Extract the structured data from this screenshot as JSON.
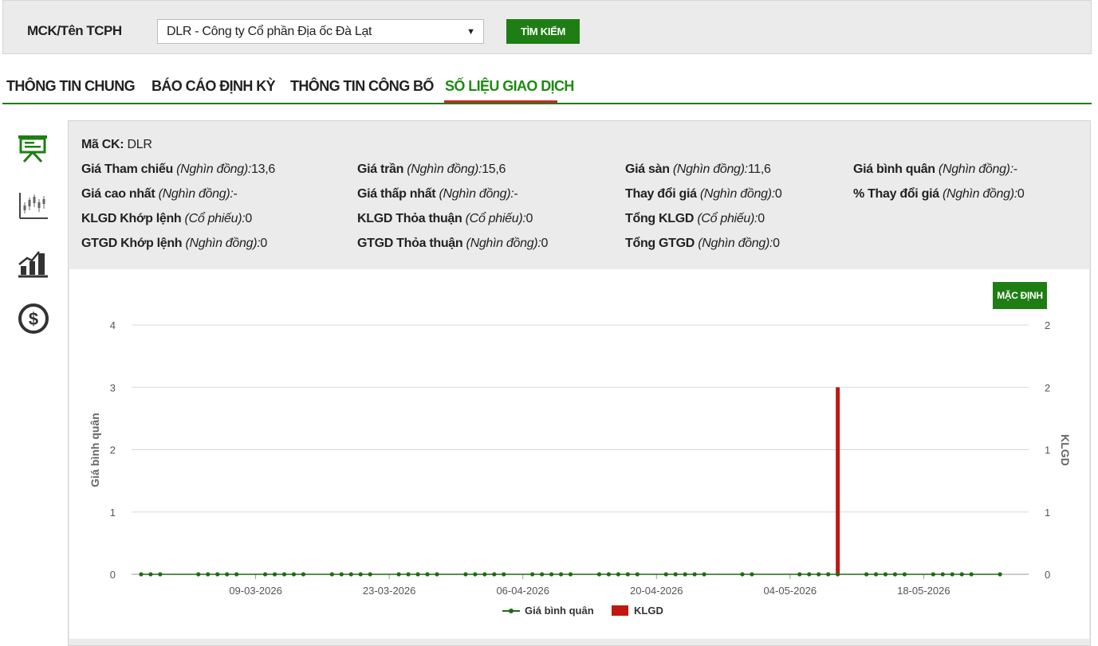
{
  "search": {
    "label": "MCK/Tên TCPH",
    "selected": "DLR - Công ty Cổ phần Địa ốc Đà Lạt",
    "button": "TÌM KIẾM"
  },
  "tabs": [
    {
      "label": "THÔNG TIN CHUNG",
      "active": false
    },
    {
      "label": "BÁO CÁO ĐỊNH KỲ",
      "active": false
    },
    {
      "label": "THÔNG TIN CÔNG BỐ",
      "active": false
    },
    {
      "label": "SỐ LIỆU GIAO DỊCH",
      "active": true
    }
  ],
  "sidebar_icons": [
    "presentation-icon",
    "candlestick-chart-icon",
    "growth-chart-icon",
    "dollar-icon"
  ],
  "info": {
    "ma_ck": {
      "label": "Mã CK:",
      "value": "DLR"
    },
    "rows": [
      [
        {
          "label": "Giá Tham chiếu",
          "unit": "(Nghìn đồng):",
          "value": "13,6"
        },
        {
          "label": "Giá trần",
          "unit": "(Nghìn đồng):",
          "value": "15,6"
        },
        {
          "label": "Giá sàn",
          "unit": "(Nghìn đồng):",
          "value": "11,6"
        },
        {
          "label": "Giá bình quân",
          "unit": "(Nghìn đồng):",
          "value": "-"
        }
      ],
      [
        {
          "label": "Giá cao nhất",
          "unit": "(Nghìn đồng):",
          "value": "-"
        },
        {
          "label": "Giá thấp nhất",
          "unit": "(Nghìn đồng):",
          "value": "-"
        },
        {
          "label": "Thay đổi giá",
          "unit": "(Nghìn đồng):",
          "value": "0"
        },
        {
          "label": "% Thay đổi giá",
          "unit": "(Nghìn đồng):",
          "value": "0"
        }
      ],
      [
        {
          "label": "KLGD Khớp lệnh",
          "unit": "(Cổ phiếu):",
          "value": "0"
        },
        {
          "label": "KLGD Thỏa thuận",
          "unit": "(Cổ phiếu):",
          "value": "0"
        },
        {
          "label": "Tổng KLGD",
          "unit": "(Cổ phiếu):",
          "value": "0"
        }
      ],
      [
        {
          "label": "GTGD Khớp lệnh",
          "unit": "(Nghìn đồng):",
          "value": "0"
        },
        {
          "label": "GTGD Thỏa thuận",
          "unit": "(Nghìn đồng):",
          "value": "0"
        },
        {
          "label": "Tổng GTGD",
          "unit": "(Nghìn đồng):",
          "value": "0"
        }
      ]
    ]
  },
  "chart_controls": {
    "default_button": "MẶC ĐỊNH"
  },
  "colors": {
    "accent": "#1e7e14",
    "line": "#1e6b14",
    "bar": "#c0180f",
    "tab_active": "#1e8a14",
    "underline": "#c62828"
  },
  "chart_data": {
    "type": "line",
    "ylabel": "Giá bình quân",
    "y2label": "KLGD",
    "ylim": [
      0,
      4
    ],
    "y2lim": [
      0,
      2
    ],
    "yticks": [
      "0",
      "1",
      "2",
      "3",
      "4"
    ],
    "y2ticks": [
      "0",
      "1",
      "1",
      "2",
      "2"
    ],
    "xrange": [
      "2026-02-24",
      "2026-05-29"
    ],
    "xticks": [
      "09-03-2026",
      "23-03-2026",
      "06-04-2026",
      "20-04-2026",
      "04-05-2026",
      "18-05-2026"
    ],
    "legend": [
      "Giá bình quân",
      "KLGD"
    ],
    "legend_position": "bottom",
    "grid": true,
    "series": [
      {
        "name": "Giá bình quân",
        "kind": "line",
        "dates": [
          "2026-02-25",
          "2026-02-26",
          "2026-02-27",
          "2026-03-03",
          "2026-03-04",
          "2026-03-05",
          "2026-03-06",
          "2026-03-07",
          "2026-03-10",
          "2026-03-11",
          "2026-03-12",
          "2026-03-13",
          "2026-03-14",
          "2026-03-17",
          "2026-03-18",
          "2026-03-19",
          "2026-03-20",
          "2026-03-21",
          "2026-03-24",
          "2026-03-25",
          "2026-03-26",
          "2026-03-27",
          "2026-03-28",
          "2026-03-31",
          "2026-04-01",
          "2026-04-02",
          "2026-04-03",
          "2026-04-04",
          "2026-04-07",
          "2026-04-08",
          "2026-04-09",
          "2026-04-10",
          "2026-04-11",
          "2026-04-14",
          "2026-04-15",
          "2026-04-16",
          "2026-04-17",
          "2026-04-18",
          "2026-04-21",
          "2026-04-22",
          "2026-04-23",
          "2026-04-24",
          "2026-04-25",
          "2026-04-29",
          "2026-04-30",
          "2026-05-05",
          "2026-05-06",
          "2026-05-07",
          "2026-05-08",
          "2026-05-09",
          "2026-05-12",
          "2026-05-13",
          "2026-05-14",
          "2026-05-15",
          "2026-05-16",
          "2026-05-19",
          "2026-05-20",
          "2026-05-21",
          "2026-05-22",
          "2026-05-23",
          "2026-05-26"
        ],
        "values": [
          0,
          0,
          0,
          0,
          0,
          0,
          0,
          0,
          0,
          0,
          0,
          0,
          0,
          0,
          0,
          0,
          0,
          0,
          0,
          0,
          0,
          0,
          0,
          0,
          0,
          0,
          0,
          0,
          0,
          0,
          0,
          0,
          0,
          0,
          0,
          0,
          0,
          0,
          0,
          0,
          0,
          0,
          0,
          0,
          0,
          0,
          0,
          0,
          0,
          0,
          0,
          0,
          0,
          0,
          0,
          0,
          0,
          0,
          0,
          0,
          0
        ]
      },
      {
        "name": "KLGD",
        "kind": "bar",
        "axis": "right",
        "dates": [
          "2026-05-09"
        ],
        "values": [
          1.5
        ]
      }
    ]
  }
}
